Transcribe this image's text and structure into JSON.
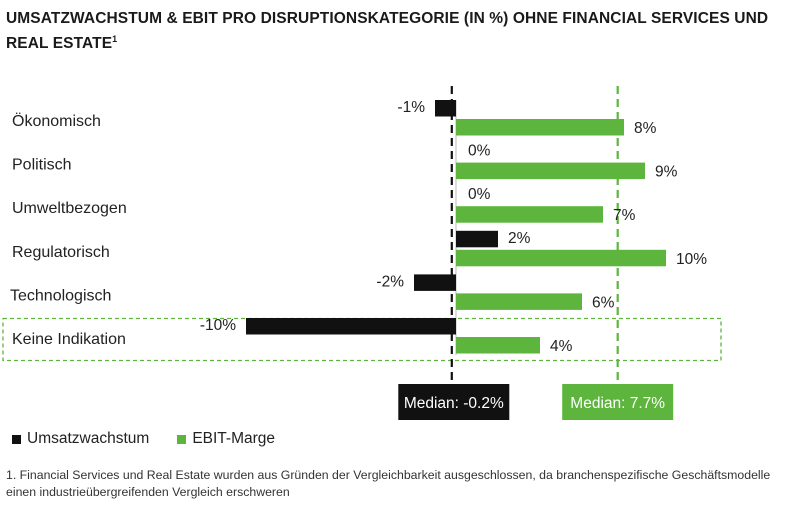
{
  "title_main": "UMSATZWACHSTUM & EBIT PRO DISRUPTIONSKATEGORIE (IN %) OHNE FINANCIAL SERVICES UND REAL ESTATE",
  "title_sup": "1",
  "colors": {
    "revenue": "#111111",
    "ebit": "#5db53d",
    "highlight": "#5db53d"
  },
  "chart_data": {
    "type": "bar",
    "orientation": "horizontal",
    "categories": [
      "Ökonomisch",
      "Politisch",
      "Umweltbezogen",
      "Regulatorisch",
      "Technologisch",
      "Keine Indikation"
    ],
    "series": [
      {
        "name": "Umsatzwachstum",
        "values": [
          -1,
          0,
          0,
          2,
          -2,
          -10
        ],
        "labels": [
          "-1%",
          "0%",
          "0%",
          "2%",
          "-2%",
          "-10%"
        ]
      },
      {
        "name": "EBIT-Marge",
        "values": [
          8,
          9,
          7,
          10,
          6,
          4
        ],
        "labels": [
          "8%",
          "9%",
          "7%",
          "10%",
          "6%",
          "4%"
        ]
      }
    ],
    "medians": [
      {
        "series": "Umsatzwachstum",
        "value": -0.2,
        "label": "Median: -0.2%"
      },
      {
        "series": "EBIT-Marge",
        "value": 7.7,
        "label": "Median: 7.7%"
      }
    ],
    "highlighted_category": "Keine Indikation",
    "xlim": [
      -10,
      10
    ]
  },
  "legend": {
    "revenue": "Umsatzwachstum",
    "ebit": "EBIT-Marge"
  },
  "footnote": "1. Financial Services und Real Estate wurden aus Gründen der Vergleichbarkeit ausgeschlossen, da branchenspezifische Geschäftsmodelle einen industrieübergreifenden Vergleich erschweren"
}
